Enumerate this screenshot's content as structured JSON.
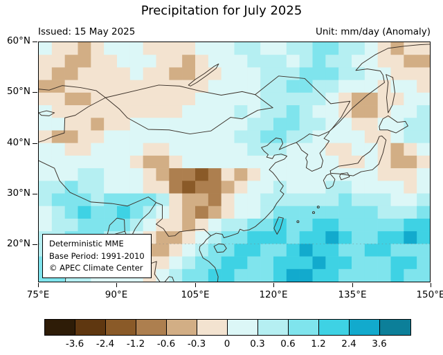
{
  "title": "Precipitation for July 2025",
  "header": {
    "issued": "Issued: 15 May 2025",
    "unit": "Unit: mm/day (Anomaly)"
  },
  "map": {
    "x_ticks": [
      "75°E",
      "90°E",
      "105°E",
      "120°E",
      "135°E",
      "150°E"
    ],
    "y_ticks": [
      "60°N",
      "50°N",
      "40°N",
      "30°N",
      "20°N"
    ],
    "info_lines": [
      "Deterministic MME",
      "Base Period: 1991-2010",
      "© APEC Climate Center"
    ]
  },
  "colorbar": {
    "labels": [
      "-3.6",
      "-2.4",
      "-1.2",
      "-0.6",
      "-0.3",
      "0",
      "0.3",
      "0.6",
      "1.2",
      "2.4",
      "3.6"
    ],
    "colors": [
      "#2e1c07",
      "#5f3710",
      "#8a5a28",
      "#ad7f4f",
      "#d2ae85",
      "#f3e3d0",
      "#dcf7f7",
      "#b5eff2",
      "#7fe4ed",
      "#3ed2e4",
      "#12aacd",
      "#0c7f99"
    ]
  },
  "chart_data": {
    "type": "heatmap",
    "title": "Precipitation for July 2025",
    "units": "mm/day (Anomaly)",
    "lon_range": [
      75,
      150
    ],
    "lat_range": [
      12.5,
      60
    ],
    "cell_deg": 2.5,
    "palette_bin_edges": [
      -3.6,
      -2.4,
      -1.2,
      -0.6,
      -0.3,
      0,
      0.3,
      0.6,
      1.2,
      2.4,
      3.6
    ],
    "grid_color_index_rows_north_to_south": [
      [
        6,
        5,
        5,
        4,
        5,
        6,
        6,
        6,
        5,
        5,
        5,
        5,
        6,
        6,
        6,
        7,
        7,
        6,
        6,
        7,
        7,
        8,
        8,
        7,
        7,
        6,
        5,
        4,
        5,
        5
      ],
      [
        5,
        5,
        4,
        4,
        5,
        5,
        6,
        6,
        6,
        5,
        5,
        4,
        5,
        6,
        6,
        6,
        7,
        7,
        7,
        6,
        7,
        8,
        7,
        7,
        6,
        6,
        5,
        5,
        4,
        4
      ],
      [
        5,
        4,
        4,
        5,
        5,
        5,
        5,
        6,
        5,
        5,
        4,
        4,
        5,
        5,
        6,
        6,
        6,
        7,
        7,
        7,
        8,
        8,
        8,
        7,
        7,
        6,
        6,
        5,
        5,
        5
      ],
      [
        4,
        4,
        5,
        5,
        5,
        5,
        5,
        5,
        5,
        5,
        5,
        5,
        5,
        6,
        6,
        6,
        6,
        7,
        7,
        8,
        8,
        7,
        7,
        6,
        6,
        6,
        5,
        6,
        6,
        5
      ],
      [
        5,
        5,
        4,
        4,
        5,
        5,
        5,
        5,
        5,
        5,
        5,
        5,
        6,
        6,
        6,
        6,
        6,
        7,
        7,
        7,
        7,
        7,
        6,
        5,
        4,
        4,
        5,
        5,
        6,
        6
      ],
      [
        6,
        5,
        5,
        5,
        5,
        5,
        5,
        5,
        5,
        5,
        5,
        6,
        6,
        6,
        6,
        7,
        6,
        7,
        7,
        8,
        7,
        6,
        6,
        5,
        4,
        4,
        5,
        6,
        6,
        7
      ],
      [
        6,
        6,
        5,
        5,
        4,
        5,
        5,
        6,
        6,
        6,
        6,
        6,
        6,
        6,
        6,
        6,
        7,
        7,
        8,
        8,
        7,
        7,
        6,
        6,
        5,
        5,
        6,
        6,
        7,
        7
      ],
      [
        5,
        4,
        4,
        5,
        5,
        6,
        6,
        6,
        6,
        6,
        6,
        6,
        6,
        6,
        6,
        7,
        7,
        8,
        8,
        7,
        7,
        6,
        6,
        6,
        6,
        5,
        5,
        6,
        7,
        7
      ],
      [
        6,
        6,
        5,
        5,
        6,
        6,
        6,
        6,
        5,
        5,
        6,
        6,
        6,
        6,
        6,
        6,
        7,
        7,
        7,
        6,
        6,
        6,
        5,
        5,
        6,
        6,
        5,
        4,
        5,
        6
      ],
      [
        6,
        6,
        6,
        6,
        6,
        6,
        6,
        5,
        4,
        4,
        5,
        6,
        6,
        6,
        6,
        6,
        6,
        6,
        6,
        6,
        6,
        6,
        6,
        5,
        5,
        6,
        5,
        4,
        4,
        5
      ],
      [
        6,
        6,
        6,
        7,
        7,
        6,
        6,
        6,
        5,
        4,
        3,
        3,
        2,
        3,
        5,
        4,
        5,
        6,
        6,
        6,
        6,
        6,
        6,
        6,
        6,
        6,
        5,
        5,
        5,
        6
      ],
      [
        7,
        7,
        8,
        7,
        7,
        6,
        6,
        6,
        5,
        5,
        3,
        2,
        3,
        3,
        4,
        5,
        6,
        6,
        7,
        6,
        6,
        6,
        7,
        7,
        6,
        6,
        6,
        6,
        5,
        6
      ],
      [
        7,
        8,
        8,
        8,
        7,
        8,
        8,
        8,
        8,
        7,
        5,
        4,
        4,
        3,
        5,
        6,
        6,
        7,
        7,
        7,
        7,
        7,
        7,
        8,
        7,
        7,
        7,
        6,
        6,
        7
      ],
      [
        6,
        7,
        8,
        9,
        8,
        8,
        9,
        8,
        7,
        6,
        5,
        4,
        3,
        4,
        5,
        6,
        6,
        7,
        8,
        8,
        8,
        8,
        8,
        8,
        8,
        8,
        7,
        7,
        7,
        8
      ],
      [
        6,
        7,
        7,
        8,
        8,
        8,
        8,
        7,
        6,
        5,
        5,
        4,
        5,
        6,
        7,
        7,
        8,
        8,
        9,
        8,
        8,
        9,
        9,
        8,
        8,
        8,
        8,
        8,
        9,
        9
      ],
      [
        7,
        7,
        8,
        8,
        8,
        7,
        7,
        6,
        5,
        4,
        4,
        5,
        6,
        7,
        8,
        8,
        9,
        9,
        9,
        8,
        9,
        9,
        10,
        9,
        8,
        8,
        9,
        9,
        10,
        9
      ],
      [
        7,
        8,
        8,
        8,
        7,
        7,
        6,
        5,
        4,
        4,
        5,
        6,
        7,
        8,
        8,
        9,
        9,
        8,
        8,
        9,
        10,
        9,
        9,
        8,
        8,
        9,
        9,
        8,
        8,
        8
      ],
      [
        8,
        8,
        8,
        7,
        7,
        6,
        6,
        5,
        5,
        5,
        6,
        7,
        8,
        8,
        9,
        9,
        8,
        8,
        9,
        9,
        9,
        10,
        9,
        9,
        8,
        8,
        8,
        9,
        9,
        8
      ],
      [
        8,
        8,
        7,
        7,
        6,
        6,
        6,
        6,
        5,
        6,
        7,
        8,
        8,
        9,
        9,
        8,
        8,
        8,
        9,
        10,
        10,
        9,
        9,
        8,
        8,
        8,
        8,
        9,
        8,
        8
      ]
    ]
  }
}
